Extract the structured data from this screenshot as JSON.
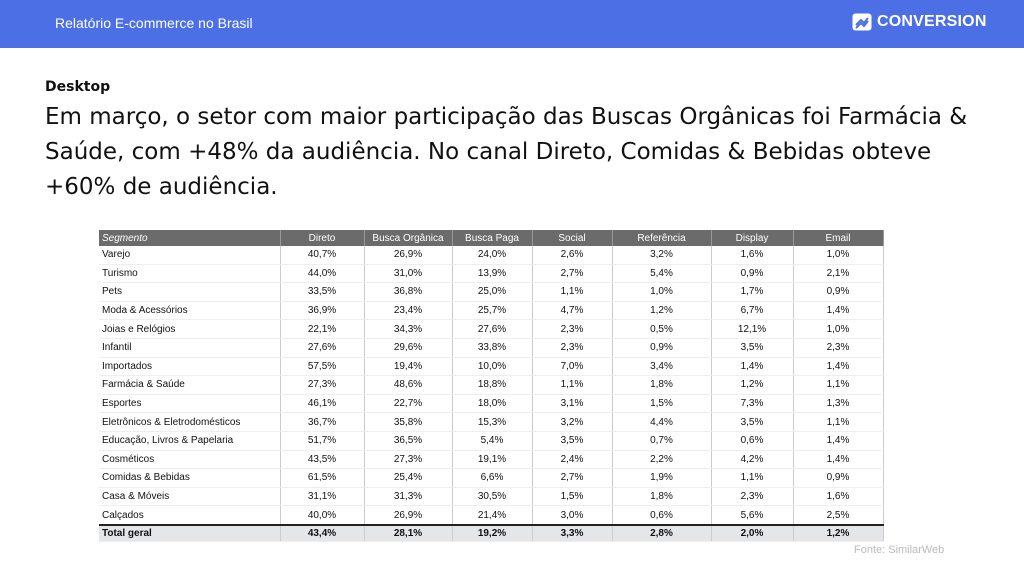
{
  "header": {
    "title": "Relatório E-commerce no Brasil",
    "logo": "CONVERSION"
  },
  "section": "Desktop",
  "headline": "Em março, o setor com maior participação das Buscas Orgânicas foi Farmácia & Saúde, com +48% da audiência. No canal Direto, Comidas & Bebidas obteve +60% de audiência.",
  "table": {
    "columns": [
      "Segmento",
      "Direto",
      "Busca Orgânica",
      "Busca Paga",
      "Social",
      "Referência",
      "Display",
      "Email"
    ],
    "rows": [
      [
        "Varejo",
        "40,7%",
        "26,9%",
        "24,0%",
        "2,6%",
        "3,2%",
        "1,6%",
        "1,0%"
      ],
      [
        "Turismo",
        "44,0%",
        "31,0%",
        "13,9%",
        "2,7%",
        "5,4%",
        "0,9%",
        "2,1%"
      ],
      [
        "Pets",
        "33,5%",
        "36,8%",
        "25,0%",
        "1,1%",
        "1,0%",
        "1,7%",
        "0,9%"
      ],
      [
        "Moda & Acessórios",
        "36,9%",
        "23,4%",
        "25,7%",
        "4,7%",
        "1,2%",
        "6,7%",
        "1,4%"
      ],
      [
        "Joias e Relógios",
        "22,1%",
        "34,3%",
        "27,6%",
        "2,3%",
        "0,5%",
        "12,1%",
        "1,0%"
      ],
      [
        "Infantil",
        "27,6%",
        "29,6%",
        "33,8%",
        "2,3%",
        "0,9%",
        "3,5%",
        "2,3%"
      ],
      [
        "Importados",
        "57,5%",
        "19,4%",
        "10,0%",
        "7,0%",
        "3,4%",
        "1,4%",
        "1,4%"
      ],
      [
        "Farmácia & Saúde",
        "27,3%",
        "48,6%",
        "18,8%",
        "1,1%",
        "1,8%",
        "1,2%",
        "1,1%"
      ],
      [
        "Esportes",
        "46,1%",
        "22,7%",
        "18,0%",
        "3,1%",
        "1,5%",
        "7,3%",
        "1,3%"
      ],
      [
        "Eletrônicos & Eletrodomésticos",
        "36,7%",
        "35,8%",
        "15,3%",
        "3,2%",
        "4,4%",
        "3,5%",
        "1,1%"
      ],
      [
        "Educação, Livros & Papelaria",
        "51,7%",
        "36,5%",
        "5,4%",
        "3,5%",
        "0,7%",
        "0,6%",
        "1,4%"
      ],
      [
        "Cosméticos",
        "43,5%",
        "27,3%",
        "19,1%",
        "2,4%",
        "2,2%",
        "4,2%",
        "1,4%"
      ],
      [
        "Comidas & Bebidas",
        "61,5%",
        "25,4%",
        "6,6%",
        "2,7%",
        "1,9%",
        "1,1%",
        "0,9%"
      ],
      [
        "Casa & Móveis",
        "31,1%",
        "31,3%",
        "30,5%",
        "1,5%",
        "1,8%",
        "2,3%",
        "1,6%"
      ],
      [
        "Calçados",
        "40,0%",
        "26,9%",
        "21,4%",
        "3,0%",
        "0,6%",
        "5,6%",
        "2,5%"
      ]
    ],
    "total": [
      "Total geral",
      "43,4%",
      "28,1%",
      "19,2%",
      "3,3%",
      "2,8%",
      "2,0%",
      "1,2%"
    ]
  },
  "source": "Fonte: SimilarWeb"
}
